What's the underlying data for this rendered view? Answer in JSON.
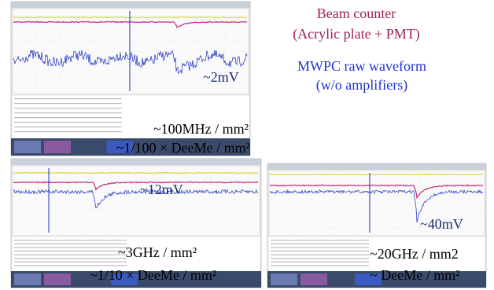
{
  "annotations": {
    "beam_counter": "Beam counter",
    "beam_counter_detail": "(Acrylic plate + PMT)",
    "mwpc": "MWPC raw waveform",
    "mwpc_detail": "(w/o amplifiers)"
  },
  "panels": [
    {
      "amplitude": "~2mV",
      "rate": "~100MHz / mm²",
      "ratio": "~1/100 × DeeMe / mm²"
    },
    {
      "amplitude": "~12mV",
      "rate": "~3GHz / mm²",
      "ratio": "~1/10 × DeeMe / mm²"
    },
    {
      "amplitude": "~40mV",
      "rate": "~20GHz / mm2",
      "ratio": "~ DeeMe / mm²"
    }
  ]
}
